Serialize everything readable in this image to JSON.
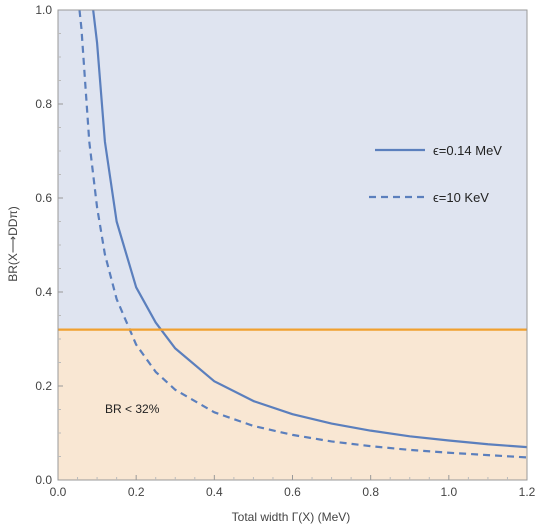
{
  "chart_data": {
    "type": "line",
    "xlabel": "Total width Γ(X) (MeV)",
    "ylabel": "BR(X⟶DDπ)",
    "xlim": [
      0.0,
      1.2
    ],
    "ylim": [
      0.0,
      1.0
    ],
    "xticks": [
      "0.0",
      "0.2",
      "0.4",
      "0.6",
      "0.8",
      "1.0",
      "1.2"
    ],
    "yticks": [
      "0.0",
      "0.2",
      "0.4",
      "0.6",
      "0.8",
      "1.0"
    ],
    "grid": false,
    "legend_position": "right",
    "series": [
      {
        "name": "ϵ=0.14 MeV",
        "style": "solid",
        "color": "#5b7fbd",
        "x": [
          0.09,
          0.1,
          0.12,
          0.15,
          0.2,
          0.25,
          0.3,
          0.4,
          0.5,
          0.6,
          0.7,
          0.8,
          0.9,
          1.0,
          1.1,
          1.2
        ],
        "y": [
          1.0,
          0.93,
          0.72,
          0.55,
          0.41,
          0.335,
          0.28,
          0.21,
          0.168,
          0.14,
          0.12,
          0.105,
          0.093,
          0.084,
          0.076,
          0.07
        ]
      },
      {
        "name": "ϵ=10 KeV",
        "style": "dashed",
        "color": "#5b7fbd",
        "x": [
          0.055,
          0.06,
          0.08,
          0.1,
          0.12,
          0.15,
          0.2,
          0.25,
          0.3,
          0.4,
          0.5,
          0.6,
          0.7,
          0.8,
          0.9,
          1.0,
          1.1,
          1.2
        ],
        "y": [
          1.0,
          0.96,
          0.72,
          0.58,
          0.48,
          0.385,
          0.288,
          0.23,
          0.192,
          0.144,
          0.115,
          0.096,
          0.082,
          0.072,
          0.064,
          0.058,
          0.053,
          0.048
        ]
      }
    ],
    "threshold": {
      "y": 0.32,
      "color": "#f0a030"
    },
    "regions": {
      "upper_color": "#dfe4f0",
      "lower_color": "#f9e7d3"
    },
    "annotation": "BR < 32%"
  }
}
